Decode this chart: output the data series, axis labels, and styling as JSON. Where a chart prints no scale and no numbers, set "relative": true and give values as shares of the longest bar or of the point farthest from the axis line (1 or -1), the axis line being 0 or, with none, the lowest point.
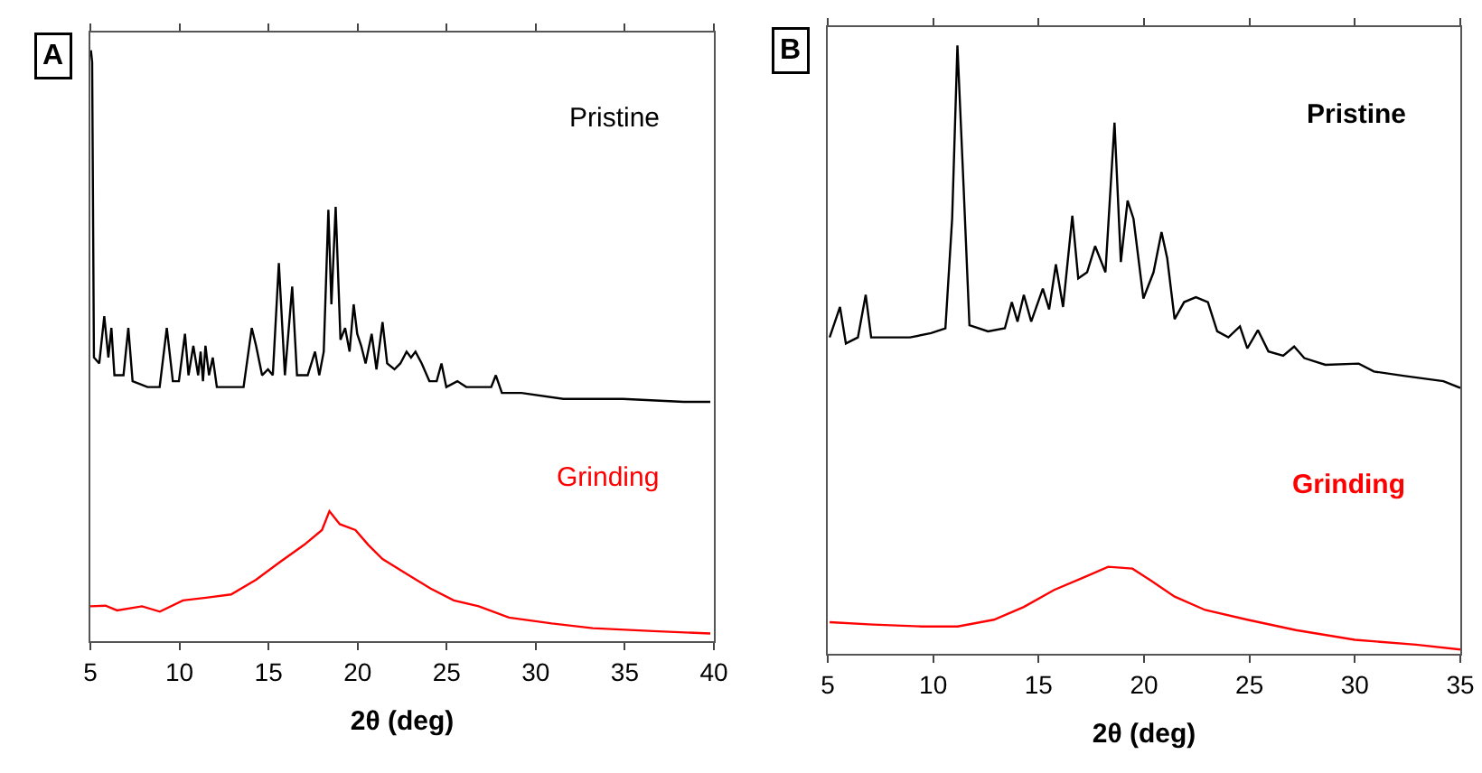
{
  "chart_data": [
    {
      "type": "line",
      "relative": true,
      "xlabel": "2θ (deg)",
      "xlim": [
        5,
        40
      ],
      "xticks": [
        5,
        10,
        15,
        20,
        25,
        30,
        35,
        40
      ],
      "annotations": [
        "A"
      ],
      "grid": false,
      "legend": false,
      "marker": "none",
      "line_style": "solid",
      "series": [
        {
          "name": "Pristine",
          "color": "#000000",
          "x": [
            5.03,
            5.1,
            5.2,
            5.5,
            5.78,
            6.01,
            6.18,
            6.35,
            6.86,
            7.13,
            7.37,
            8.21,
            8.89,
            9.29,
            9.63,
            9.97,
            10.31,
            10.51,
            10.78,
            11.05,
            11.19,
            11.32,
            11.46,
            11.66,
            11.87,
            12.1,
            12.94,
            13.6,
            14.06,
            14.3,
            14.64,
            14.97,
            15.24,
            15.58,
            15.92,
            16.33,
            16.6,
            17.2,
            17.61,
            17.85,
            18.1,
            18.36,
            18.53,
            18.77,
            19.04,
            19.3,
            19.55,
            19.78,
            19.98,
            20.2,
            20.45,
            20.79,
            21.06,
            21.4,
            21.66,
            22.07,
            22.4,
            22.75,
            23.0,
            23.25,
            23.6,
            24.03,
            24.44,
            24.71,
            24.98,
            25.6,
            26.1,
            26.8,
            27.5,
            27.76,
            28.1,
            29.2,
            31.55,
            34.6,
            34.9,
            38.3,
            39.8
          ],
          "values": [
            1.0,
            0.98,
            0.48,
            0.47,
            0.55,
            0.48,
            0.53,
            0.45,
            0.45,
            0.53,
            0.44,
            0.43,
            0.43,
            0.53,
            0.44,
            0.44,
            0.52,
            0.45,
            0.5,
            0.45,
            0.49,
            0.44,
            0.5,
            0.45,
            0.48,
            0.43,
            0.43,
            0.43,
            0.53,
            0.5,
            0.45,
            0.46,
            0.45,
            0.64,
            0.45,
            0.6,
            0.45,
            0.45,
            0.49,
            0.45,
            0.49,
            0.73,
            0.57,
            0.735,
            0.51,
            0.53,
            0.49,
            0.57,
            0.52,
            0.5,
            0.47,
            0.52,
            0.46,
            0.54,
            0.47,
            0.46,
            0.47,
            0.49,
            0.48,
            0.49,
            0.47,
            0.44,
            0.44,
            0.47,
            0.43,
            0.44,
            0.43,
            0.43,
            0.43,
            0.45,
            0.42,
            0.42,
            0.41,
            0.41,
            0.41,
            0.405,
            0.405
          ]
        },
        {
          "name": "Grinding",
          "color": "#ff0000",
          "x": [
            5.0,
            5.85,
            6.5,
            7.9,
            8.9,
            10.2,
            11.6,
            12.9,
            14.3,
            15.65,
            17.0,
            18.0,
            18.42,
            19.0,
            19.88,
            20.6,
            21.4,
            22.75,
            24.1,
            25.4,
            26.8,
            28.5,
            30.9,
            33.2,
            36.6,
            39.8
          ],
          "values": [
            0.059,
            0.06,
            0.052,
            0.059,
            0.05,
            0.069,
            0.074,
            0.079,
            0.104,
            0.134,
            0.163,
            0.188,
            0.22,
            0.198,
            0.188,
            0.163,
            0.139,
            0.114,
            0.089,
            0.069,
            0.059,
            0.04,
            0.03,
            0.022,
            0.017,
            0.013
          ]
        }
      ]
    },
    {
      "type": "line",
      "relative": true,
      "xlabel": "2θ (deg)",
      "xlim": [
        5,
        35
      ],
      "xticks": [
        5,
        10,
        15,
        20,
        25,
        30,
        35
      ],
      "annotations": [
        "B"
      ],
      "grid": false,
      "legend": false,
      "marker": "none",
      "line_style": "solid",
      "series": [
        {
          "name": "Pristine",
          "color": "#000000",
          "x": [
            5.09,
            5.58,
            5.86,
            6.43,
            6.8,
            7.06,
            8.9,
            9.9,
            10.58,
            10.9,
            11.15,
            11.44,
            11.72,
            12.6,
            13.4,
            13.73,
            14.0,
            14.3,
            14.65,
            15.2,
            15.5,
            15.82,
            16.16,
            16.6,
            16.88,
            17.3,
            17.68,
            18.17,
            18.6,
            18.9,
            19.22,
            19.5,
            19.97,
            20.45,
            20.83,
            21.1,
            21.45,
            21.9,
            22.46,
            23.03,
            23.47,
            24.0,
            24.55,
            24.9,
            25.4,
            25.9,
            26.6,
            27.12,
            27.6,
            28.6,
            30.18,
            30.9,
            32.3,
            34.2,
            35.0
          ],
          "values": [
            0.52,
            0.57,
            0.51,
            0.52,
            0.59,
            0.52,
            0.52,
            0.527,
            0.535,
            0.715,
            1.0,
            0.77,
            0.54,
            0.53,
            0.535,
            0.578,
            0.546,
            0.59,
            0.546,
            0.6,
            0.566,
            0.64,
            0.57,
            0.72,
            0.617,
            0.627,
            0.67,
            0.627,
            0.873,
            0.644,
            0.745,
            0.715,
            0.584,
            0.627,
            0.693,
            0.65,
            0.55,
            0.578,
            0.586,
            0.578,
            0.53,
            0.52,
            0.538,
            0.502,
            0.532,
            0.497,
            0.49,
            0.505,
            0.486,
            0.475,
            0.477,
            0.464,
            0.457,
            0.448,
            0.437
          ]
        },
        {
          "name": "Grinding",
          "color": "#ff0000",
          "x": [
            5.09,
            7.15,
            9.44,
            11.16,
            12.88,
            14.3,
            15.74,
            17.17,
            18.3,
            19.45,
            20.3,
            21.45,
            22.9,
            24.9,
            27.2,
            30.0,
            32.9,
            35.0
          ],
          "values": [
            0.052,
            0.048,
            0.045,
            0.045,
            0.056,
            0.077,
            0.105,
            0.126,
            0.143,
            0.14,
            0.121,
            0.094,
            0.072,
            0.056,
            0.039,
            0.023,
            0.015,
            0.007
          ]
        }
      ]
    }
  ]
}
